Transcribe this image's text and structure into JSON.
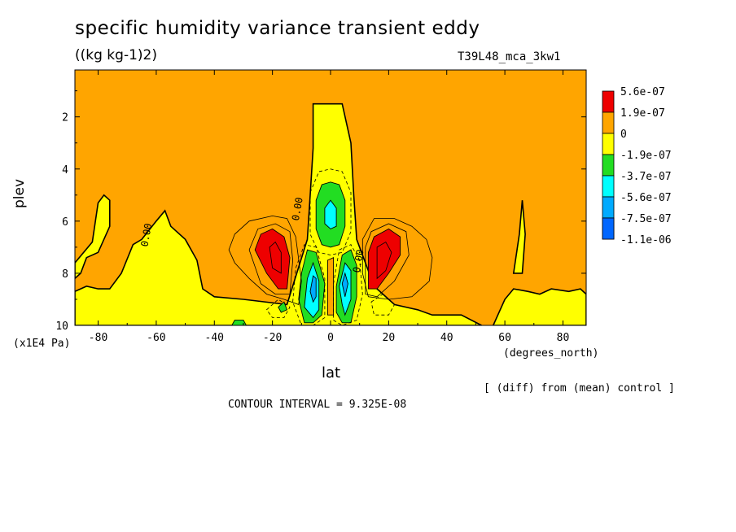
{
  "chart_data": {
    "type": "heatmap",
    "title": "specific humidity variance transient eddy",
    "units": "((kg kg-1)2)",
    "run_label": "T39L48_mca_3kw1",
    "xlabel": "lat",
    "xunits": "(degrees_north)",
    "ylabel": "plev",
    "yunits": "(x1E4 Pa)",
    "xlim": [
      -88,
      88
    ],
    "ylim": [
      10,
      0.2
    ],
    "x_ticks": [
      -80,
      -60,
      -40,
      -20,
      0,
      20,
      40,
      60,
      80
    ],
    "y_ticks": [
      2,
      4,
      6,
      8,
      10
    ],
    "contour_interval": "CONTOUR INTERVAL = 9.325E-08",
    "note": "[ (diff) from (mean) control ]",
    "contour_labels": [
      "0.00",
      "0.00",
      "0.00"
    ],
    "legend": [
      {
        "label": "5.6e-07",
        "color": "#ee0000"
      },
      {
        "label": "1.9e-07",
        "color": "#ffa500"
      },
      {
        "label": "0",
        "color": "#ffff00"
      },
      {
        "label": "-1.9e-07",
        "color": "#22dd22"
      },
      {
        "label": "-3.7e-07",
        "color": "#00ffff"
      },
      {
        "label": "-5.6e-07",
        "color": "#00aaff"
      },
      {
        "label": "-7.5e-07",
        "color": "#0066ff"
      },
      {
        "label": "-1.1e-06",
        "color": null
      }
    ],
    "regions": [
      {
        "level": "orange",
        "desc": "background positive",
        "pts": [
          [
            -88,
            0.2
          ],
          [
            88,
            0.2
          ],
          [
            88,
            10
          ],
          [
            -88,
            10
          ]
        ]
      },
      {
        "level": "yellow",
        "pts": [
          [
            -88,
            7.6
          ],
          [
            -82,
            6.8
          ],
          [
            -80,
            5.3
          ],
          [
            -78,
            5.0
          ],
          [
            -76,
            5.2
          ],
          [
            -76,
            6.2
          ],
          [
            -80,
            7.2
          ],
          [
            -84,
            7.4
          ],
          [
            -86,
            8.0
          ],
          [
            -88,
            8.2
          ]
        ]
      },
      {
        "level": "yellow",
        "pts": [
          [
            -88,
            8.7
          ],
          [
            -84,
            8.5
          ],
          [
            -80,
            8.6
          ],
          [
            -76,
            8.6
          ],
          [
            -72,
            8.0
          ],
          [
            -68,
            6.9
          ],
          [
            -65,
            6.7
          ],
          [
            -60,
            6.0
          ],
          [
            -57,
            5.6
          ],
          [
            -55,
            6.2
          ],
          [
            -50,
            6.7
          ],
          [
            -46,
            7.5
          ],
          [
            -44,
            8.6
          ],
          [
            -40,
            8.9
          ],
          [
            -30,
            9.0
          ],
          [
            -15,
            9.2
          ],
          [
            -8,
            6.7
          ],
          [
            -7,
            5.0
          ],
          [
            -6,
            3.2
          ],
          [
            -6,
            1.5
          ],
          [
            4,
            1.5
          ],
          [
            7,
            3.0
          ],
          [
            8,
            5.0
          ],
          [
            9,
            6.7
          ],
          [
            15,
            8.5
          ],
          [
            22,
            9.2
          ],
          [
            30,
            9.4
          ],
          [
            35,
            9.6
          ],
          [
            45,
            9.6
          ],
          [
            52,
            10
          ],
          [
            -88,
            10
          ]
        ]
      },
      {
        "level": "yellow",
        "pts": [
          [
            56,
            10
          ],
          [
            60,
            9.0
          ],
          [
            63,
            8.6
          ],
          [
            68,
            8.7
          ],
          [
            72,
            8.8
          ],
          [
            76,
            8.6
          ],
          [
            82,
            8.7
          ],
          [
            86,
            8.6
          ],
          [
            88,
            8.8
          ],
          [
            88,
            10
          ]
        ]
      },
      {
        "level": "yellow",
        "pts": [
          [
            63,
            8.0
          ],
          [
            65,
            6.5
          ],
          [
            66,
            5.2
          ],
          [
            67,
            6.5
          ],
          [
            66,
            8.0
          ]
        ]
      },
      {
        "level": "red",
        "pts": [
          [
            -26,
            7.1
          ],
          [
            -24,
            6.5
          ],
          [
            -20,
            6.3
          ],
          [
            -16,
            6.6
          ],
          [
            -14,
            7.4
          ],
          [
            -15,
            8.6
          ],
          [
            -18,
            8.6
          ],
          [
            -22,
            8.0
          ]
        ]
      },
      {
        "level": "red",
        "pts": [
          [
            13,
            8.6
          ],
          [
            13,
            7.2
          ],
          [
            15,
            6.6
          ],
          [
            20,
            6.3
          ],
          [
            24,
            6.6
          ],
          [
            24,
            7.3
          ],
          [
            20,
            8.0
          ],
          [
            16,
            8.6
          ]
        ]
      },
      {
        "level": "green",
        "pts": [
          [
            -5,
            5.2
          ],
          [
            -3,
            4.6
          ],
          [
            0,
            4.5
          ],
          [
            3,
            4.6
          ],
          [
            5,
            5.2
          ],
          [
            5,
            6.2
          ],
          [
            3,
            6.9
          ],
          [
            0,
            7.0
          ],
          [
            -3,
            6.9
          ],
          [
            -5,
            6.3
          ]
        ]
      },
      {
        "level": "cyan",
        "pts": [
          [
            -2,
            5.5
          ],
          [
            0,
            5.2
          ],
          [
            2,
            5.5
          ],
          [
            2,
            6.2
          ],
          [
            0,
            6.3
          ],
          [
            -2,
            6.1
          ]
        ]
      },
      {
        "level": "green",
        "pts": [
          [
            -11,
            9.0
          ],
          [
            -10,
            8.0
          ],
          [
            -8,
            7.1
          ],
          [
            -5,
            7.2
          ],
          [
            -2,
            8.4
          ],
          [
            -3,
            9.6
          ],
          [
            -6,
            9.9
          ],
          [
            -9,
            9.9
          ]
        ]
      },
      {
        "level": "cyan",
        "pts": [
          [
            -9,
            9.3
          ],
          [
            -8,
            8.2
          ],
          [
            -6,
            7.6
          ],
          [
            -4,
            8.3
          ],
          [
            -4,
            9.4
          ],
          [
            -6,
            9.7
          ]
        ]
      },
      {
        "level": "blue",
        "pts": [
          [
            -7,
            8.7
          ],
          [
            -6,
            8.1
          ],
          [
            -5,
            8.2
          ],
          [
            -5,
            8.9
          ],
          [
            -6,
            9.1
          ]
        ]
      },
      {
        "level": "green",
        "pts": [
          [
            2,
            8.5
          ],
          [
            4,
            7.3
          ],
          [
            7,
            7.1
          ],
          [
            9,
            7.7
          ],
          [
            9,
            8.9
          ],
          [
            7,
            9.9
          ],
          [
            4,
            9.9
          ],
          [
            2,
            9.5
          ]
        ]
      },
      {
        "level": "cyan",
        "pts": [
          [
            3,
            8.5
          ],
          [
            5,
            7.6
          ],
          [
            7,
            7.9
          ],
          [
            7,
            9.0
          ],
          [
            5,
            9.6
          ],
          [
            4,
            9.2
          ]
        ]
      },
      {
        "level": "blue",
        "pts": [
          [
            4,
            8.4
          ],
          [
            5,
            8.0
          ],
          [
            6,
            8.4
          ],
          [
            5,
            8.9
          ]
        ]
      },
      {
        "level": "green",
        "pts": [
          [
            -18,
            9.3
          ],
          [
            -16,
            9.1
          ],
          [
            -15,
            9.4
          ],
          [
            -17,
            9.5
          ]
        ]
      },
      {
        "level": "green",
        "pts": [
          [
            -34,
            10
          ],
          [
            -33,
            9.8
          ],
          [
            -30,
            9.8
          ],
          [
            -29,
            10
          ]
        ]
      },
      {
        "level": "orange",
        "pts": [
          [
            -1,
            7.5
          ],
          [
            1,
            7.4
          ],
          [
            1,
            9.6
          ],
          [
            -1,
            9.6
          ]
        ]
      }
    ],
    "contours": [
      {
        "style": "thin",
        "pts": [
          [
            -35,
            7.1
          ],
          [
            -33,
            6.5
          ],
          [
            -28,
            6.0
          ],
          [
            -20,
            5.8
          ],
          [
            -15,
            5.9
          ],
          [
            -12,
            6.6
          ],
          [
            -10,
            8.3
          ],
          [
            -11,
            9.2
          ],
          [
            -16,
            9.0
          ],
          [
            -22,
            8.8
          ],
          [
            -28,
            8.2
          ],
          [
            -33,
            7.6
          ]
        ]
      },
      {
        "style": "thin",
        "pts": [
          [
            15,
            5.9
          ],
          [
            22,
            5.9
          ],
          [
            28,
            6.2
          ],
          [
            33,
            6.7
          ],
          [
            35,
            7.4
          ],
          [
            34,
            8.3
          ],
          [
            28,
            8.9
          ],
          [
            20,
            9.0
          ],
          [
            13,
            8.9
          ],
          [
            11,
            8.0
          ],
          [
            11,
            6.7
          ]
        ]
      },
      {
        "style": "thin",
        "pts": [
          [
            -28,
            7.1
          ],
          [
            -25,
            6.3
          ],
          [
            -19,
            6.1
          ],
          [
            -14,
            6.4
          ],
          [
            -13,
            7.5
          ],
          [
            -14,
            8.8
          ],
          [
            -19,
            8.8
          ],
          [
            -24,
            8.4
          ]
        ]
      },
      {
        "style": "thin",
        "pts": [
          [
            12,
            8.8
          ],
          [
            12,
            7.0
          ],
          [
            14,
            6.4
          ],
          [
            20,
            6.1
          ],
          [
            26,
            6.4
          ],
          [
            27,
            7.3
          ],
          [
            22,
            8.3
          ],
          [
            16,
            8.9
          ]
        ]
      },
      {
        "style": "thin",
        "pts": [
          [
            -21,
            7.0
          ],
          [
            -19,
            6.8
          ],
          [
            -17,
            7.2
          ],
          [
            -17,
            8.0
          ],
          [
            -20,
            7.8
          ]
        ]
      },
      {
        "style": "thin",
        "pts": [
          [
            16,
            7.0
          ],
          [
            19,
            6.8
          ],
          [
            21,
            7.2
          ],
          [
            19,
            7.9
          ],
          [
            16,
            8.2
          ]
        ]
      },
      {
        "style": "dashed",
        "pts": [
          [
            -7,
            4.9
          ],
          [
            -4,
            4.1
          ],
          [
            0,
            4.0
          ],
          [
            4,
            4.1
          ],
          [
            7,
            4.9
          ],
          [
            7,
            6.4
          ],
          [
            4,
            7.2
          ],
          [
            0,
            7.3
          ],
          [
            -4,
            7.2
          ],
          [
            -7,
            6.5
          ]
        ]
      },
      {
        "style": "dashed",
        "pts": [
          [
            -13,
            9.1
          ],
          [
            -12,
            7.8
          ],
          [
            -9,
            6.9
          ],
          [
            -5,
            7.0
          ],
          [
            -2,
            8.2
          ],
          [
            -2,
            9.7
          ],
          [
            -6,
            10
          ],
          [
            -10,
            10
          ]
        ]
      },
      {
        "style": "dashed",
        "pts": [
          [
            1,
            8.4
          ],
          [
            3,
            7.1
          ],
          [
            7,
            6.9
          ],
          [
            10,
            7.5
          ],
          [
            11,
            8.8
          ],
          [
            9,
            9.8
          ],
          [
            4,
            10
          ],
          [
            1,
            9.8
          ]
        ]
      },
      {
        "style": "dashed",
        "pts": [
          [
            -22,
            9.4
          ],
          [
            -18,
            9.0
          ],
          [
            -14,
            9.3
          ],
          [
            -16,
            9.7
          ],
          [
            -20,
            9.7
          ]
        ]
      },
      {
        "style": "dashed",
        "pts": [
          [
            14,
            9.1
          ],
          [
            18,
            8.8
          ],
          [
            22,
            9.2
          ],
          [
            20,
            9.6
          ],
          [
            15,
            9.6
          ]
        ]
      }
    ],
    "label_positions": [
      [
        -63,
        7.0
      ],
      [
        -11,
        6.0
      ],
      [
        10,
        8.0
      ]
    ]
  }
}
